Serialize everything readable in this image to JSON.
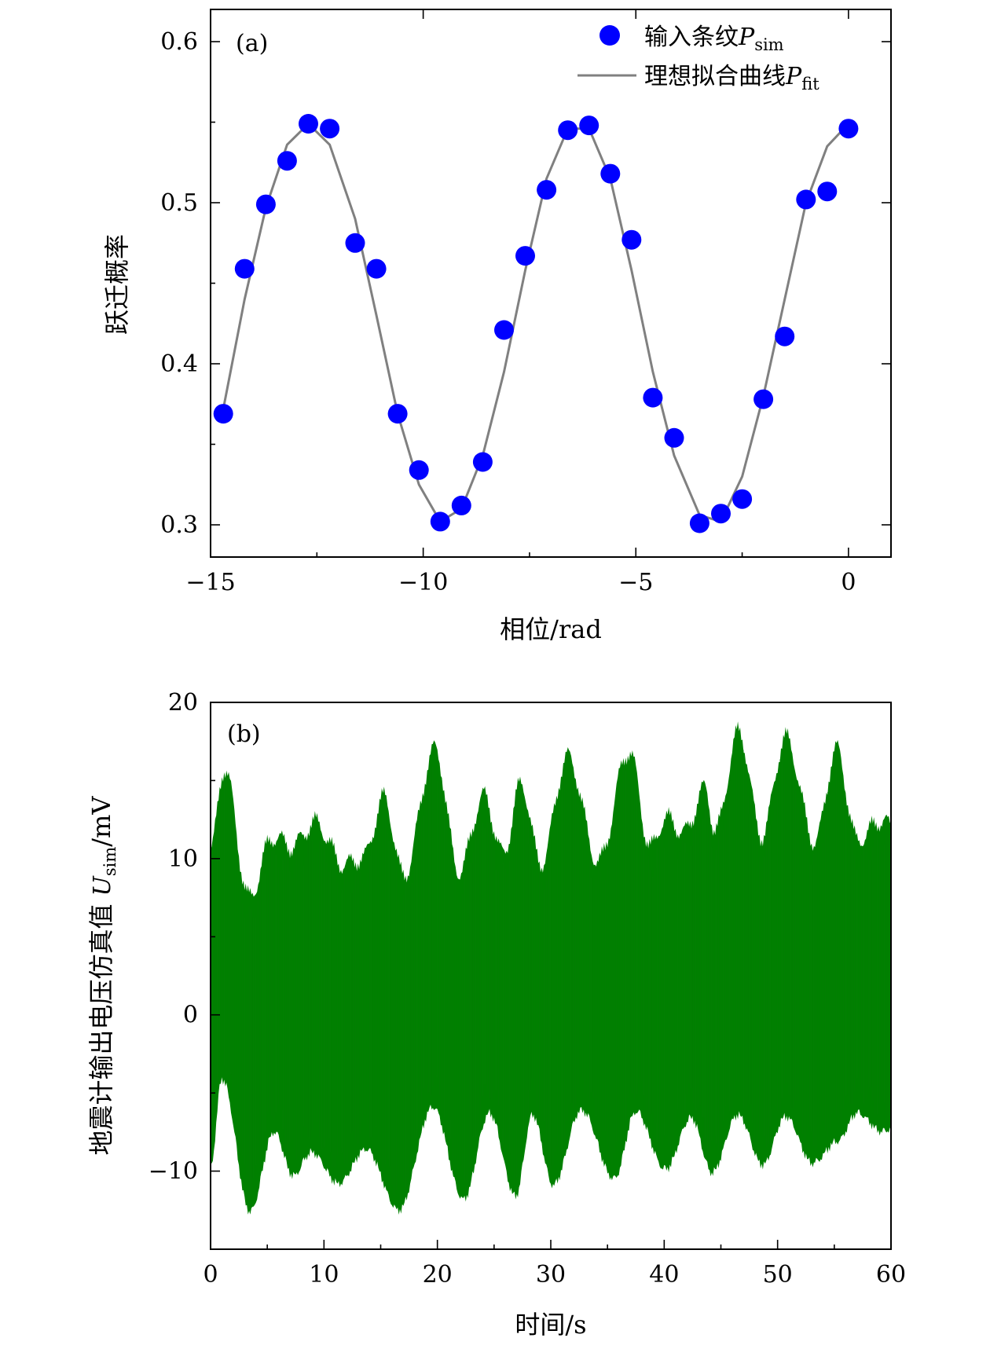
{
  "chart_data": [
    {
      "type": "scatter",
      "panel_label": "(a)",
      "xlabel": "相位/rad",
      "ylabel": "跃迁概率",
      "xlim": [
        -15,
        1
      ],
      "ylim": [
        0.28,
        0.62
      ],
      "xticks": [
        -15,
        -10,
        -5,
        0
      ],
      "xtick_labels": [
        "−15",
        "−10",
        "−5",
        "0"
      ],
      "yticks": [
        0.3,
        0.4,
        0.5,
        0.6
      ],
      "ytick_labels": [
        "0.3",
        "0.4",
        "0.5",
        "0.6"
      ],
      "legend_position": "top-right",
      "series": [
        {
          "name": "输入条纹",
          "name_symbol": "P",
          "name_subscript": "sim",
          "kind": "markers",
          "color": "#0000ff",
          "x": [
            -14.7,
            -14.2,
            -13.7,
            -13.2,
            -12.7,
            -12.2,
            -11.6,
            -11.1,
            -10.6,
            -10.1,
            -9.6,
            -9.1,
            -8.6,
            -8.1,
            -7.6,
            -7.1,
            -6.6,
            -6.1,
            -5.6,
            -5.1,
            -4.6,
            -4.1,
            -3.5,
            -3.0,
            -2.5,
            -2.0,
            -1.5,
            -1.0,
            -0.5,
            0.0
          ],
          "y": [
            0.369,
            0.459,
            0.499,
            0.526,
            0.549,
            0.546,
            0.475,
            0.459,
            0.369,
            0.334,
            0.302,
            0.312,
            0.339,
            0.421,
            0.467,
            0.508,
            0.545,
            0.548,
            0.518,
            0.477,
            0.379,
            0.354,
            0.301,
            0.307,
            0.316,
            0.378,
            0.417,
            0.502,
            0.507,
            0.546
          ]
        },
        {
          "name": "理想拟合曲线",
          "name_symbol": "P",
          "name_subscript": "fit",
          "kind": "line",
          "color": "#808080",
          "x": [
            -14.7,
            -14.2,
            -13.7,
            -13.2,
            -12.7,
            -12.2,
            -11.6,
            -11.1,
            -10.6,
            -10.1,
            -9.6,
            -9.1,
            -8.6,
            -8.1,
            -7.6,
            -7.1,
            -6.6,
            -6.1,
            -5.6,
            -5.1,
            -4.6,
            -4.1,
            -3.5,
            -3.0,
            -2.5,
            -2.0,
            -1.5,
            -1.0,
            -0.5,
            0.0
          ],
          "y": [
            0.372,
            0.44,
            0.497,
            0.536,
            0.549,
            0.536,
            0.49,
            0.43,
            0.369,
            0.325,
            0.302,
            0.31,
            0.343,
            0.395,
            0.458,
            0.515,
            0.546,
            0.546,
            0.515,
            0.458,
            0.395,
            0.343,
            0.306,
            0.302,
            0.33,
            0.38,
            0.44,
            0.5,
            0.535,
            0.549
          ]
        }
      ]
    },
    {
      "type": "line",
      "panel_label": "(b)",
      "xlabel": "时间/s",
      "ylabel": "地震计输出电压仿真值",
      "ylabel_symbol": "U",
      "ylabel_subscript": "sim",
      "ylabel_unit": "/mV",
      "xlim": [
        0,
        60
      ],
      "ylim": [
        -15,
        20
      ],
      "xticks": [
        0,
        10,
        20,
        30,
        40,
        50,
        60
      ],
      "xtick_labels": [
        "0",
        "10",
        "20",
        "30",
        "40",
        "50",
        "60"
      ],
      "yticks": [
        -10,
        0,
        10,
        20
      ],
      "ytick_labels": [
        "−10",
        "0",
        "10",
        "20"
      ],
      "series": [
        {
          "kind": "dense-oscillation",
          "color": "#008000",
          "upper_envelope": {
            "x": [
              0,
              1.2,
              3.4,
              5.5,
              7.2,
              9.2,
              11.8,
              13.5,
              15.3,
              17.0,
              19.8,
              21.9,
              24.1,
              25.8,
              27.4,
              29.1,
              31.5,
              34.2,
              36.9,
              38.8,
              40.1,
              41.8,
              43.6,
              44.5,
              46.6,
              48.6,
              50.7,
              53.3,
              55.2,
              57.0,
              59.3,
              60
            ],
            "y": [
              10.5,
              15.8,
              7.5,
              11.4,
              10.8,
              12.3,
              9.6,
              10.1,
              13.9,
              8.9,
              17.0,
              9.2,
              14.0,
              10.3,
              14.8,
              9.7,
              16.5,
              9.8,
              16.9,
              10.7,
              12.6,
              11.7,
              14.5,
              11.8,
              18.1,
              11.5,
              17.7,
              11.1,
              17.0,
              11.2,
              12.5,
              12.0
            ]
          },
          "lower_envelope": {
            "x": [
              0,
              1.0,
              3.5,
              5.6,
              7.3,
              8.9,
              11.3,
              13.7,
              16.6,
              19.6,
              22.3,
              24.6,
              26.9,
              28.4,
              30.2,
              32.7,
              35.6,
              37.5,
              40.1,
              42.4,
              44.2,
              46.5,
              48.7,
              50.7,
              53.1,
              55.3,
              57.0,
              59.3,
              60
            ],
            "y": [
              -9.5,
              -3.8,
              -12.3,
              -7.2,
              -10.0,
              -8.5,
              -10.5,
              -8.3,
              -12.2,
              -5.6,
              -11.5,
              -6.0,
              -11.3,
              -6.1,
              -10.6,
              -5.8,
              -10.2,
              -5.9,
              -9.6,
              -6.3,
              -9.8,
              -6.1,
              -9.3,
              -6.2,
              -9.2,
              -7.8,
              -6.0,
              -7.2,
              -7.0
            ]
          }
        }
      ]
    }
  ]
}
